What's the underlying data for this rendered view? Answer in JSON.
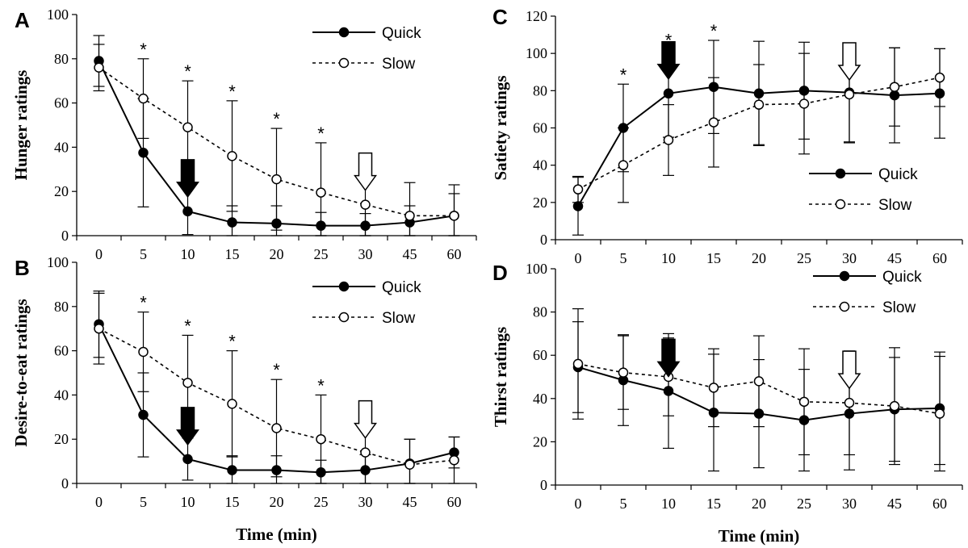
{
  "chart_data": [
    {
      "panel": "A",
      "type": "line",
      "ylabel": "Hunger ratings",
      "xlabel": "",
      "categories": [
        "0",
        "5",
        "10",
        "15",
        "20",
        "25",
        "30",
        "45",
        "60"
      ],
      "ylim": [
        0,
        100
      ],
      "yticks": [
        "0",
        "20",
        "40",
        "60",
        "80",
        "100"
      ],
      "legend_position": "top-right",
      "series": [
        {
          "name": "Quick",
          "style": "solid",
          "marker": "filled",
          "values": [
            79,
            37.5,
            11,
            6,
            5.5,
            4.5,
            4.5,
            6,
            9
          ],
          "errors": [
            11.5,
            24.5,
            10.5,
            7.5,
            8,
            6,
            5.5,
            7.5,
            10
          ]
        },
        {
          "name": "Slow",
          "style": "dotted",
          "marker": "open",
          "values": [
            76,
            62,
            49,
            36,
            25.5,
            19.5,
            14,
            9,
            9
          ],
          "errors": [
            10.5,
            18,
            21,
            25,
            23,
            22.5,
            18.5,
            15,
            14
          ]
        }
      ],
      "significance_marks": [
        {
          "category": "5",
          "text": "*"
        },
        {
          "category": "10",
          "text": "*"
        },
        {
          "category": "15",
          "text": "*"
        },
        {
          "category": "20",
          "text": "*"
        },
        {
          "category": "25",
          "text": "*"
        }
      ],
      "arrows": [
        {
          "series": "Quick",
          "category": "10",
          "fill": "filled"
        },
        {
          "series": "Slow",
          "category": "30",
          "fill": "open"
        }
      ]
    },
    {
      "panel": "B",
      "type": "line",
      "ylabel": "Desire-to-eat ratings",
      "xlabel": "Time (min)",
      "categories": [
        "0",
        "5",
        "10",
        "15",
        "20",
        "25",
        "30",
        "45",
        "60"
      ],
      "ylim": [
        0,
        100
      ],
      "yticks": [
        "0",
        "20",
        "40",
        "60",
        "80",
        "100"
      ],
      "legend_position": "top-right",
      "series": [
        {
          "name": "Quick",
          "style": "solid",
          "marker": "filled",
          "values": [
            72,
            31,
            11,
            6,
            6,
            5,
            6,
            9,
            14
          ],
          "errors": [
            15,
            19,
            9.5,
            6.5,
            6.5,
            5.5,
            7,
            11,
            7
          ]
        },
        {
          "name": "Slow",
          "style": "dotted",
          "marker": "open",
          "values": [
            70,
            59.5,
            45.5,
            36,
            25,
            20,
            14,
            8.5,
            10.5
          ],
          "errors": [
            16,
            18,
            21.5,
            24,
            22,
            20,
            18,
            11.5,
            10.5
          ]
        }
      ],
      "significance_marks": [
        {
          "category": "5",
          "text": "*"
        },
        {
          "category": "10",
          "text": "*"
        },
        {
          "category": "15",
          "text": "*"
        },
        {
          "category": "20",
          "text": "*"
        },
        {
          "category": "25",
          "text": "*"
        }
      ],
      "arrows": [
        {
          "series": "Quick",
          "category": "10",
          "fill": "filled"
        },
        {
          "series": "Slow",
          "category": "30",
          "fill": "open"
        }
      ]
    },
    {
      "panel": "C",
      "type": "line",
      "ylabel": "Satiety ratings",
      "xlabel": "",
      "categories": [
        "0",
        "5",
        "10",
        "15",
        "20",
        "25",
        "30",
        "45",
        "60"
      ],
      "ylim": [
        0,
        120
      ],
      "yticks": [
        "0",
        "20",
        "40",
        "60",
        "80",
        "100",
        "120"
      ],
      "legend_position": "bottom-right",
      "series": [
        {
          "name": "Quick",
          "style": "solid",
          "marker": "filled",
          "values": [
            18,
            60,
            78.5,
            82,
            78.5,
            80,
            79,
            77.5,
            78.5
          ],
          "errors": [
            15.5,
            23.5,
            23.5,
            25,
            28,
            26,
            26.5,
            25.5,
            24
          ]
        },
        {
          "name": "Slow",
          "style": "dotted",
          "marker": "open",
          "values": [
            27,
            40,
            53.5,
            63,
            72.5,
            73,
            78,
            82,
            87
          ],
          "errors": [
            7,
            20,
            19,
            24,
            21.5,
            27,
            26,
            21,
            15.5
          ]
        }
      ],
      "significance_marks": [
        {
          "category": "5",
          "text": "*"
        },
        {
          "category": "10",
          "text": "*"
        },
        {
          "category": "15",
          "text": "*"
        }
      ],
      "arrows": [
        {
          "series": "Quick",
          "category": "10",
          "fill": "filled"
        },
        {
          "series": "Slow",
          "category": "30",
          "fill": "open"
        }
      ]
    },
    {
      "panel": "D",
      "type": "line",
      "ylabel": "Thirst ratings",
      "xlabel": "Time (min)",
      "categories": [
        "0",
        "5",
        "10",
        "15",
        "20",
        "25",
        "30",
        "45",
        "60"
      ],
      "ylim": [
        0,
        100
      ],
      "yticks": [
        "0",
        "20",
        "40",
        "60",
        "80",
        "100"
      ],
      "legend_position": "top-right",
      "series": [
        {
          "name": "Quick",
          "style": "solid",
          "marker": "filled",
          "values": [
            54.5,
            48.5,
            43.5,
            33.5,
            33,
            30,
            33,
            35,
            35.5
          ],
          "errors": [
            21,
            21,
            26.5,
            27,
            25,
            23.5,
            26,
            24,
            26
          ]
        },
        {
          "name": "Slow",
          "style": "dotted",
          "marker": "open",
          "values": [
            56,
            52,
            50,
            45,
            48,
            38.5,
            38,
            36.5,
            33
          ],
          "errors": [
            25.5,
            17,
            18,
            18,
            21,
            24.5,
            24,
            27,
            26.5
          ]
        }
      ],
      "significance_marks": [],
      "arrows": [
        {
          "series": "Quick",
          "category": "10",
          "fill": "filled"
        },
        {
          "series": "Slow",
          "category": "30",
          "fill": "open"
        }
      ]
    }
  ]
}
